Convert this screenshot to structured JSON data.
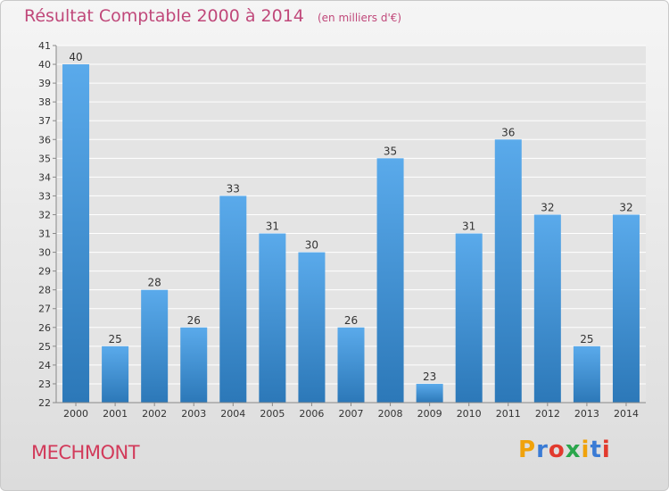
{
  "header": {
    "title": "Résultat Comptable 2000 à 2014",
    "unit": "(en milliers d'€)"
  },
  "footer": {
    "commune": "MECHMONT",
    "brand": "Proxiti",
    "brand_colors": [
      "#f0a20b",
      "#3a7bd5",
      "#e23a2e",
      "#2aa64c",
      "#f0a20b",
      "#3a7bd5",
      "#e23a2e"
    ]
  },
  "chart_data": {
    "type": "bar",
    "title": "Résultat Comptable 2000 à 2014",
    "subtitle": "(en milliers d'€)",
    "xlabel": "",
    "ylabel": "",
    "categories": [
      "2000",
      "2001",
      "2002",
      "2003",
      "2004",
      "2005",
      "2006",
      "2007",
      "2008",
      "2009",
      "2010",
      "2011",
      "2012",
      "2013",
      "2014"
    ],
    "values": [
      40,
      25,
      28,
      26,
      33,
      31,
      30,
      26,
      35,
      23,
      31,
      36,
      32,
      25,
      32
    ],
    "ylim": [
      22,
      41
    ],
    "yticks": [
      22,
      23,
      24,
      25,
      26,
      27,
      28,
      29,
      30,
      31,
      32,
      33,
      34,
      35,
      36,
      37,
      38,
      39,
      40,
      41
    ],
    "grid": true,
    "bar_color_top": "#5aaaeb",
    "bar_color_bottom": "#2c78b8"
  }
}
